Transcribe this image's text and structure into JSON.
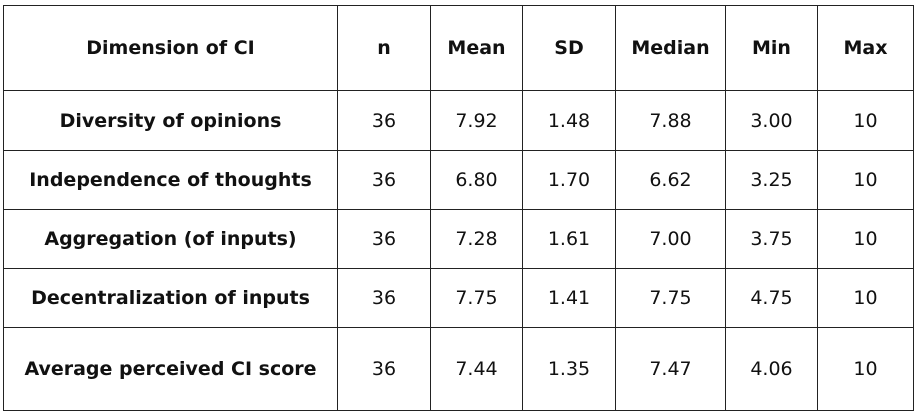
{
  "table": {
    "header": [
      "Dimension of CI",
      "n",
      "Mean",
      "SD",
      "Median",
      "Min",
      "Max"
    ],
    "rows": [
      [
        "Diversity of opinions",
        "36",
        "7.92",
        "1.48",
        "7.88",
        "3.00",
        "10"
      ],
      [
        "Independence of thoughts",
        "36",
        "6.80",
        "1.70",
        "6.62",
        "3.25",
        "10"
      ],
      [
        "Aggregation (of inputs)",
        "36",
        "7.28",
        "1.61",
        "7.00",
        "3.75",
        "10"
      ],
      [
        "Decentralization of inputs",
        "36",
        "7.75",
        "1.41",
        "7.75",
        "4.75",
        "10"
      ],
      [
        "Average perceived CI score",
        "36",
        "7.44",
        "1.35",
        "7.47",
        "4.06",
        "10"
      ]
    ]
  }
}
